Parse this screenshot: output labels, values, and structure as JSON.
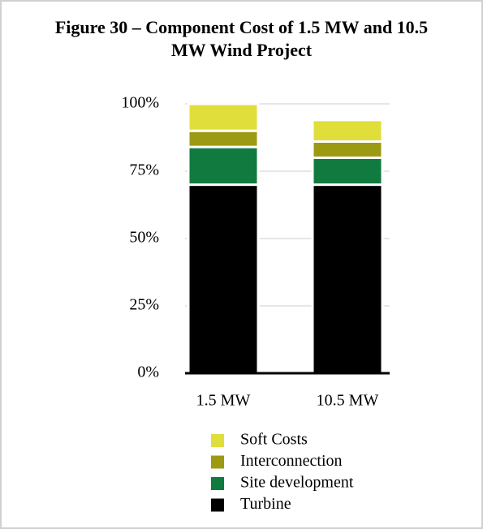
{
  "chart_data": {
    "type": "stacked_bar",
    "title": "Figure 30 – Component Cost of 1.5 MW and 10.5 MW Wind Project",
    "categories": [
      "1.5 MW",
      "10.5 MW"
    ],
    "series": [
      {
        "name": "Turbine",
        "color": "#000000",
        "values": [
          70,
          70
        ]
      },
      {
        "name": "Site development",
        "color": "#117a3f",
        "values": [
          14,
          10
        ]
      },
      {
        "name": "Interconnection",
        "color": "#9c9a12",
        "values": [
          6,
          6
        ]
      },
      {
        "name": "Soft Costs",
        "color": "#e0de3a",
        "values": [
          10,
          8
        ]
      }
    ],
    "ylim": [
      0,
      100
    ],
    "yticks": [
      {
        "value": 0,
        "label": "0%"
      },
      {
        "value": 25,
        "label": "25%"
      },
      {
        "value": 50,
        "label": "50%"
      },
      {
        "value": 75,
        "label": "75%"
      },
      {
        "value": 100,
        "label": "100%"
      }
    ],
    "grid": true
  }
}
